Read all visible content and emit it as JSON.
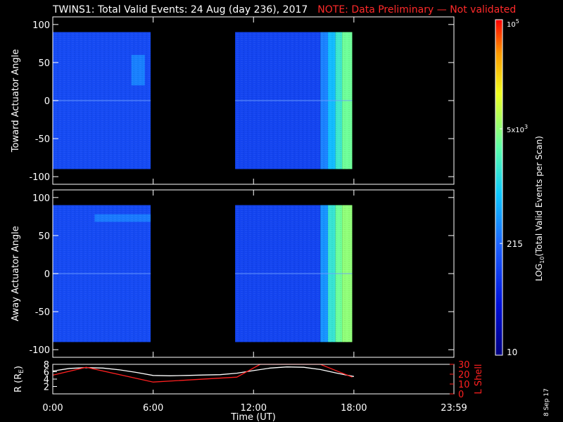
{
  "title": {
    "main": "TWINS1: Total Valid Events: 24 Aug (day 236), 2017",
    "note": "NOTE: Data Preliminary — Not validated"
  },
  "colors": {
    "note": "#ff2a2a",
    "background": "#000000",
    "axes": "#ffffff",
    "no_data": "#000000"
  },
  "date_stamp": "8 Sep 17",
  "chart_data": [
    {
      "type": "heatmap",
      "ylabel": "Toward Actuator Angle",
      "ylim": [
        -110,
        110
      ],
      "yticks": [
        100,
        50,
        0,
        -50,
        -100
      ],
      "xlim_hours": [
        0,
        23.98
      ],
      "xtick_labels": [
        "0:00",
        "6:00",
        "12:00",
        "18:00",
        "23:59"
      ],
      "xtick_hours": [
        0,
        6,
        12,
        18,
        23.98
      ],
      "angle_range": [
        -90,
        90
      ],
      "data_coverage_hours": [
        [
          0,
          5.85
        ],
        [
          10.9,
          17.9
        ]
      ],
      "colorbar_level_by_time": [
        {
          "hours": [
            0.0,
            5.85
          ],
          "log10": 2.1
        },
        {
          "hours": [
            10.9,
            16.0
          ],
          "log10": 2.05
        },
        {
          "hours": [
            16.0,
            16.45
          ],
          "log10": 2.5
        },
        {
          "hours": [
            16.45,
            16.9
          ],
          "log10": 2.85
        },
        {
          "hours": [
            16.9,
            17.3
          ],
          "log10": 3.25
        },
        {
          "hours": [
            17.3,
            17.9
          ],
          "log10": 3.55
        }
      ],
      "features": [
        {
          "hours": [
            4.7,
            5.5
          ],
          "angle": [
            20,
            60
          ],
          "log10": 2.55
        }
      ]
    },
    {
      "type": "heatmap",
      "ylabel": "Away Actuator Angle",
      "ylim": [
        -110,
        110
      ],
      "yticks": [
        100,
        50,
        0,
        -50,
        -100
      ],
      "xlim_hours": [
        0,
        23.98
      ],
      "xtick_labels": [
        "0:00",
        "6:00",
        "12:00",
        "18:00",
        "23:59"
      ],
      "xtick_hours": [
        0,
        6,
        12,
        18,
        23.98
      ],
      "angle_range": [
        -90,
        90
      ],
      "data_coverage_hours": [
        [
          0,
          5.85
        ],
        [
          10.9,
          17.9
        ]
      ],
      "colorbar_level_by_time": [
        {
          "hours": [
            0.0,
            5.85
          ],
          "log10": 2.1
        },
        {
          "hours": [
            10.9,
            16.0
          ],
          "log10": 2.05
        },
        {
          "hours": [
            16.0,
            16.45
          ],
          "log10": 2.6
        },
        {
          "hours": [
            16.45,
            16.9
          ],
          "log10": 3.2
        },
        {
          "hours": [
            16.9,
            17.3
          ],
          "log10": 3.55
        },
        {
          "hours": [
            17.3,
            17.9
          ],
          "log10": 3.7
        }
      ],
      "features": [
        {
          "hours": [
            2.5,
            5.85
          ],
          "angle": [
            68,
            78
          ],
          "log10": 2.5
        }
      ]
    },
    {
      "type": "line",
      "xlabel": "Time (UT)",
      "ylabel_left": "R (R",
      "ylabel_left_sub": "E",
      "ylabel_left_end": ")",
      "ylabel_right": "L Shell",
      "y_left_range": [
        0,
        8
      ],
      "y_left_ticks": [
        8,
        6,
        4,
        2
      ],
      "y_right_range": [
        0,
        30
      ],
      "y_right_ticks": [
        30,
        20,
        10,
        0
      ],
      "y_right_tick_labels": [
        "30",
        "20",
        "10",
        "0"
      ],
      "xlim_hours": [
        0,
        23.98
      ],
      "xtick_labels": [
        "0:00",
        "6:00",
        "12:00",
        "18:00",
        "23:59"
      ],
      "xtick_hours": [
        0,
        6,
        12,
        18,
        23.98
      ],
      "series": [
        {
          "color": "#ffffff",
          "axis": "left",
          "x": [
            0,
            1,
            2,
            3,
            4,
            5,
            6,
            7,
            8,
            9,
            10,
            11,
            12,
            13,
            14,
            15,
            16,
            17,
            18
          ],
          "y": [
            6.2,
            6.9,
            7.1,
            7.0,
            6.5,
            5.8,
            5.0,
            4.9,
            5.0,
            5.1,
            5.2,
            5.6,
            6.3,
            7.0,
            7.3,
            7.2,
            6.6,
            5.6,
            4.7
          ]
        },
        {
          "color": "#ff2020",
          "axis": "right",
          "x": [
            0,
            2,
            6,
            11,
            12.4,
            13,
            15.5,
            16,
            17.9
          ],
          "y": [
            19,
            27,
            12,
            17,
            30,
            30,
            30,
            30,
            17
          ]
        }
      ]
    }
  ],
  "colorbar": {
    "label": "LOG",
    "label_sub": "10",
    "label_rest": "(Total Valid Events per Scan)",
    "log10_range": [
      1,
      5
    ],
    "ticks": [
      {
        "label": "10",
        "log10": 1
      },
      {
        "label": "215",
        "log10": 2.332
      },
      {
        "label": "5x10",
        "sup": "3",
        "log10": 3.699
      },
      {
        "label": "10",
        "sup": "5",
        "log10": 5
      }
    ]
  }
}
